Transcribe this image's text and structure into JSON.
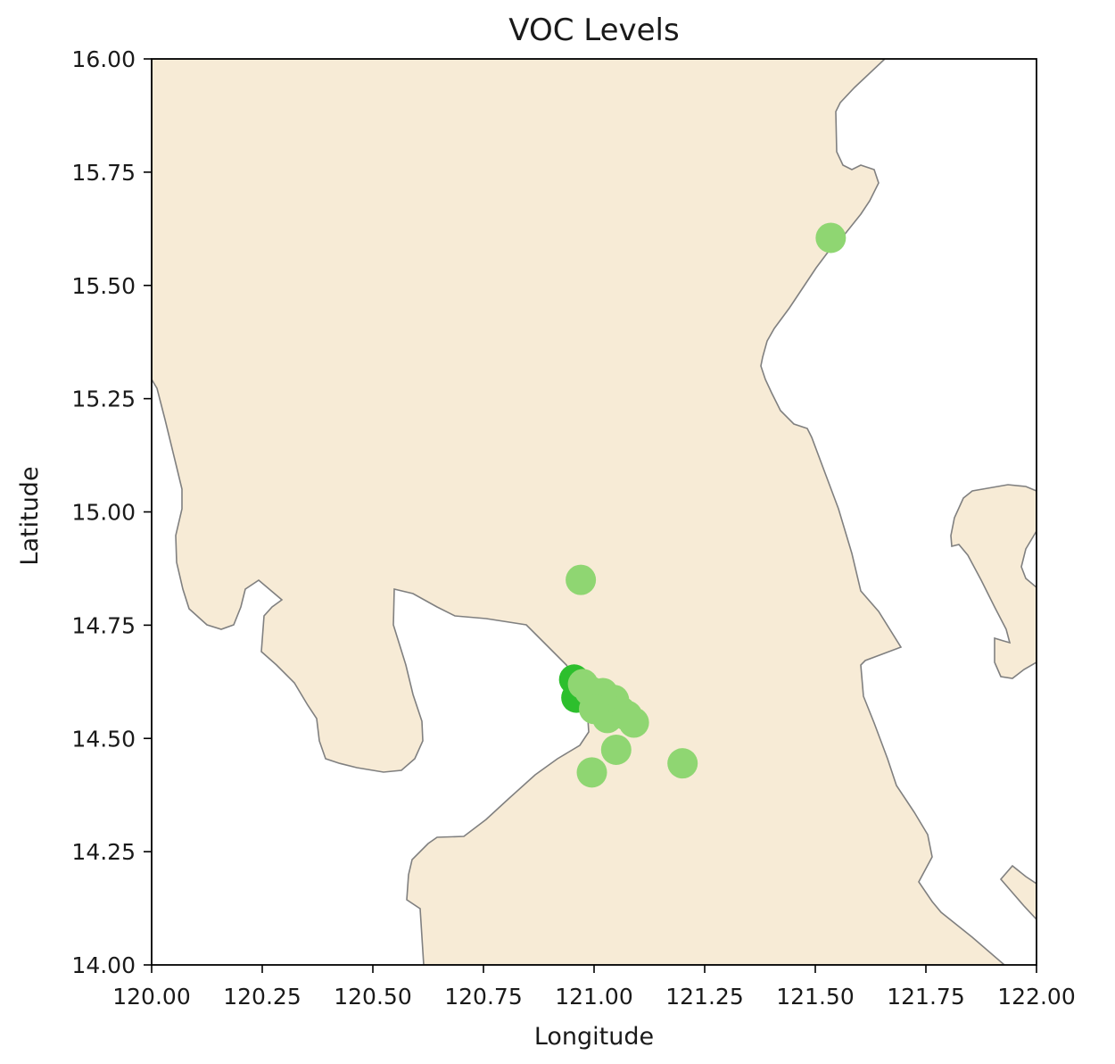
{
  "chart_data": {
    "type": "scatter",
    "title": "VOC Levels",
    "xlabel": "Longitude",
    "ylabel": "Latitude",
    "xlim": [
      120.0,
      122.0
    ],
    "ylim": [
      14.0,
      16.0
    ],
    "xticks": [
      "120.00",
      "120.25",
      "120.50",
      "120.75",
      "121.00",
      "121.25",
      "121.50",
      "121.75",
      "122.00"
    ],
    "yticks": [
      "14.00",
      "14.25",
      "14.50",
      "14.75",
      "15.00",
      "15.25",
      "15.50",
      "15.75",
      "16.00"
    ],
    "grid": false,
    "land_color": "#f7ebd6",
    "coast_color": "#808080",
    "point_colors": {
      "light": "#8fd672",
      "dark": "#2dbf2d"
    },
    "points": [
      {
        "lon": 121.535,
        "lat": 15.605,
        "level": "light"
      },
      {
        "lon": 120.97,
        "lat": 14.85,
        "level": "light"
      },
      {
        "lon": 120.955,
        "lat": 14.63,
        "level": "dark"
      },
      {
        "lon": 120.96,
        "lat": 14.59,
        "level": "dark"
      },
      {
        "lon": 120.975,
        "lat": 14.62,
        "level": "light"
      },
      {
        "lon": 120.99,
        "lat": 14.605,
        "level": "light"
      },
      {
        "lon": 121.005,
        "lat": 14.585,
        "level": "light"
      },
      {
        "lon": 121.02,
        "lat": 14.6,
        "level": "light"
      },
      {
        "lon": 121.03,
        "lat": 14.57,
        "level": "light"
      },
      {
        "lon": 121.03,
        "lat": 14.545,
        "level": "light"
      },
      {
        "lon": 121.045,
        "lat": 14.585,
        "level": "light"
      },
      {
        "lon": 121.06,
        "lat": 14.56,
        "level": "light"
      },
      {
        "lon": 121.075,
        "lat": 14.55,
        "level": "light"
      },
      {
        "lon": 121.09,
        "lat": 14.535,
        "level": "light"
      },
      {
        "lon": 121.0,
        "lat": 14.565,
        "level": "light"
      },
      {
        "lon": 121.05,
        "lat": 14.475,
        "level": "light"
      },
      {
        "lon": 120.995,
        "lat": 14.425,
        "level": "light"
      },
      {
        "lon": 121.2,
        "lat": 14.445,
        "level": "light"
      }
    ]
  }
}
